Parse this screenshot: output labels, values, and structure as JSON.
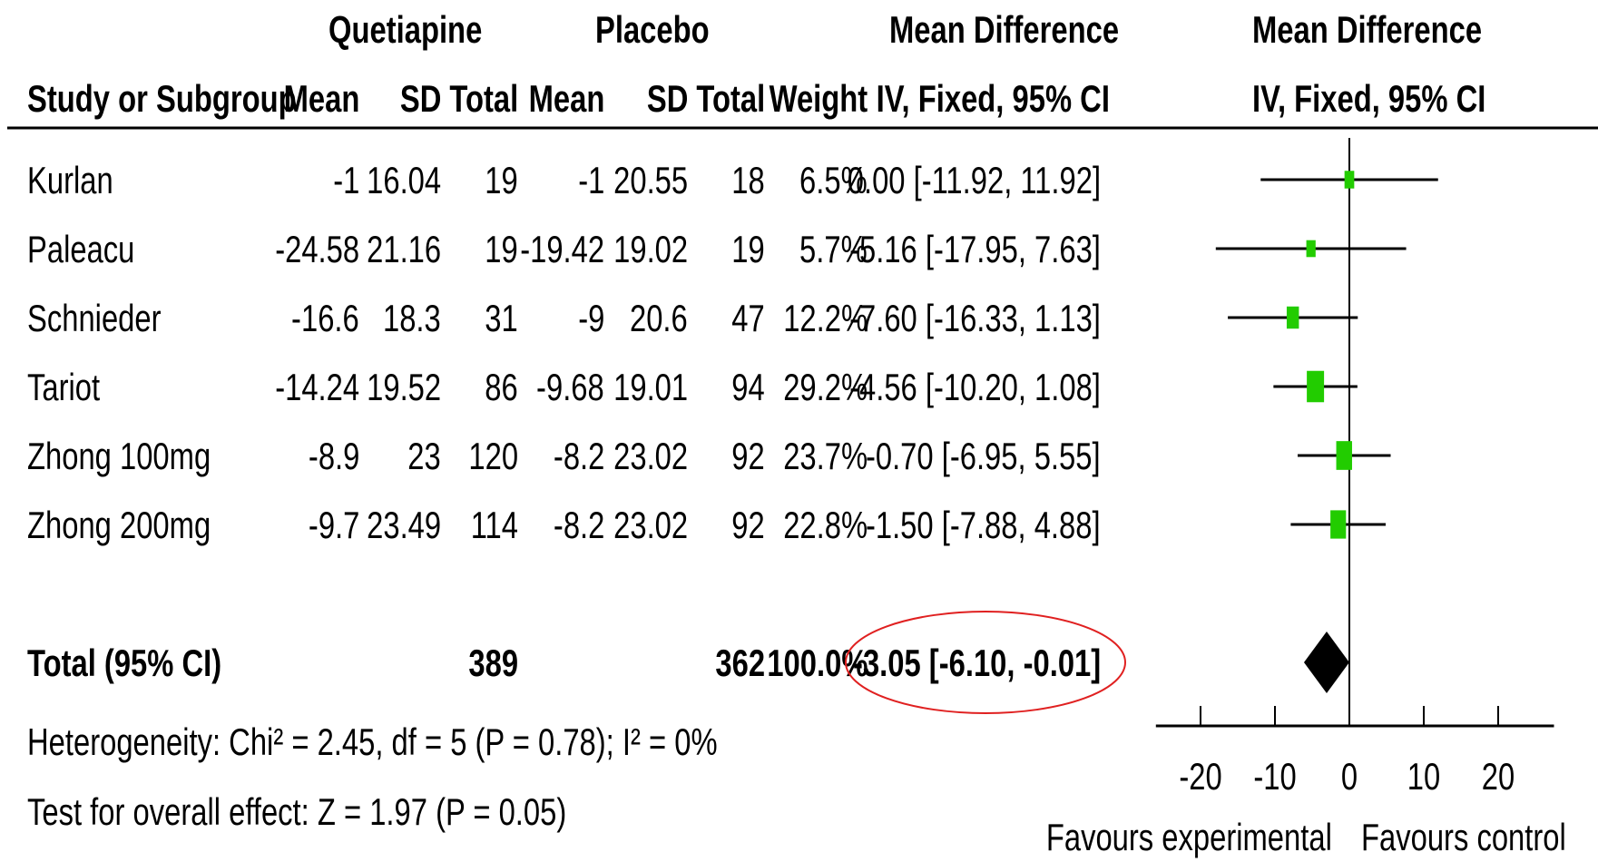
{
  "header": {
    "group_exp": "Quetiapine",
    "group_ctl": "Placebo",
    "md_title": "Mean Difference",
    "md_method": "IV, Fixed, 95% CI",
    "plot_title": "Mean Difference",
    "plot_method": "IV, Fixed, 95% CI",
    "col_study": "Study or Subgroup",
    "col_mean_exp": "Mean",
    "col_sd_exp": "SD",
    "col_total_exp": "Total",
    "col_mean_ctl": "Mean",
    "col_sd_ctl": "SD",
    "col_total_ctl": "Total",
    "col_weight": "Weight"
  },
  "studies": [
    {
      "name": "Kurlan",
      "mean_exp": "-1",
      "sd_exp": "16.04",
      "total_exp": "19",
      "mean_ctl": "-1",
      "sd_ctl": "20.55",
      "total_ctl": "18",
      "weight": "6.5%",
      "ci_text": "0.00 [-11.92, 11.92]"
    },
    {
      "name": "Paleacu",
      "mean_exp": "-24.58",
      "sd_exp": "21.16",
      "total_exp": "19",
      "mean_ctl": "-19.42",
      "sd_ctl": "19.02",
      "total_ctl": "19",
      "weight": "5.7%",
      "ci_text": "-5.16 [-17.95, 7.63]"
    },
    {
      "name": "Schnieder",
      "mean_exp": "-16.6",
      "sd_exp": "18.3",
      "total_exp": "31",
      "mean_ctl": "-9",
      "sd_ctl": "20.6",
      "total_ctl": "47",
      "weight": "12.2%",
      "ci_text": "-7.60 [-16.33, 1.13]"
    },
    {
      "name": "Tariot",
      "mean_exp": "-14.24",
      "sd_exp": "19.52",
      "total_exp": "86",
      "mean_ctl": "-9.68",
      "sd_ctl": "19.01",
      "total_ctl": "94",
      "weight": "29.2%",
      "ci_text": "-4.56 [-10.20, 1.08]"
    },
    {
      "name": "Zhong 100mg",
      "mean_exp": "-8.9",
      "sd_exp": "23",
      "total_exp": "120",
      "mean_ctl": "-8.2",
      "sd_ctl": "23.02",
      "total_ctl": "92",
      "weight": "23.7%",
      "ci_text": "-0.70 [-6.95, 5.55]"
    },
    {
      "name": "Zhong 200mg",
      "mean_exp": "-9.7",
      "sd_exp": "23.49",
      "total_exp": "114",
      "mean_ctl": "-8.2",
      "sd_ctl": "23.02",
      "total_ctl": "92",
      "weight": "22.8%",
      "ci_text": "-1.50 [-7.88, 4.88]"
    }
  ],
  "total": {
    "label": "Total (95% CI)",
    "total_exp": "389",
    "total_ctl": "362",
    "weight": "100.0%",
    "ci_text": "-3.05 [-6.10, -0.01]"
  },
  "footer": {
    "heterogeneity": "Heterogeneity: Chi² = 2.45, df = 5 (P = 0.78); I² = 0%",
    "overall_effect": "Test for overall effect: Z = 1.97 (P = 0.05)"
  },
  "axis": {
    "favours_left": "Favours experimental",
    "favours_right": "Favours control"
  },
  "colors": {
    "study_marker": "#22cc00",
    "summary_marker": "#000000",
    "highlight_circle": "#e02020",
    "lines": "#000000"
  },
  "chart_data": {
    "type": "forest",
    "xlim": [
      -20,
      20
    ],
    "xticks": [
      -20,
      -10,
      0,
      10,
      20
    ],
    "null_line": 0,
    "studies": [
      {
        "name": "Kurlan",
        "md": 0.0,
        "lower": -11.92,
        "upper": 11.92,
        "weight": 6.5
      },
      {
        "name": "Paleacu",
        "md": -5.16,
        "lower": -17.95,
        "upper": 7.63,
        "weight": 5.7
      },
      {
        "name": "Schnieder",
        "md": -7.6,
        "lower": -16.33,
        "upper": 1.13,
        "weight": 12.2
      },
      {
        "name": "Tariot",
        "md": -4.56,
        "lower": -10.2,
        "upper": 1.08,
        "weight": 29.2
      },
      {
        "name": "Zhong 100mg",
        "md": -0.7,
        "lower": -6.95,
        "upper": 5.55,
        "weight": 23.7
      },
      {
        "name": "Zhong 200mg",
        "md": -1.5,
        "lower": -7.88,
        "upper": 4.88,
        "weight": 22.8
      }
    ],
    "summary": {
      "name": "Total (95% CI)",
      "md": -3.05,
      "lower": -6.1,
      "upper": -0.01,
      "weight": 100.0
    }
  }
}
